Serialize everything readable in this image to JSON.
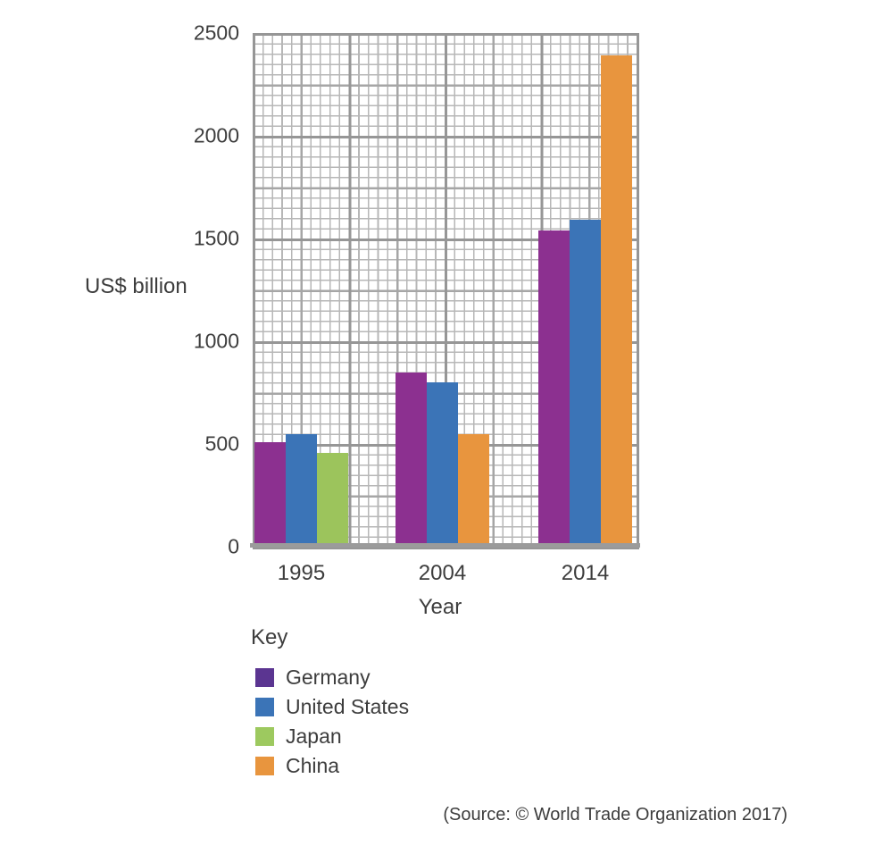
{
  "figure": {
    "labels": {
      "y_axis": "US$ billion",
      "x_axis": "Year",
      "key_title": "Key",
      "source": "(Source: © World Trade Organization 2017)"
    },
    "colors": {
      "text": "#3d3d3d",
      "axis_line": "#9b9b9b",
      "grid_minor": "#b7b7b7",
      "grid_medium": "#a6a6a6",
      "grid_major": "#969696",
      "background": "#ffffff"
    }
  },
  "chart_data": {
    "type": "bar",
    "title": "",
    "xlabel": "Year",
    "ylabel": "US$ billion",
    "categories": [
      "1995",
      "2004",
      "2014"
    ],
    "series": [
      {
        "name": "Germany",
        "values": [
          510,
          850,
          1540
        ],
        "bar_color": "#8c3090",
        "legend_color": "#5b3591"
      },
      {
        "name": "United States",
        "values": [
          550,
          800,
          1590
        ],
        "bar_color": "#3b74b7",
        "legend_color": "#3b74b7"
      },
      {
        "name": "Japan",
        "values": [
          455,
          null,
          null
        ],
        "bar_color": "#9cc45c",
        "legend_color": "#9dc95f"
      },
      {
        "name": "China",
        "values": [
          null,
          550,
          2390
        ],
        "bar_color": "#e8953e",
        "legend_color": "#e8953e"
      }
    ],
    "ylim": [
      0,
      2500
    ],
    "yticks": [
      2500,
      2000,
      1500,
      1000,
      500,
      0
    ],
    "grid": "graph-paper: minor step 50, medium step 250, major step 500",
    "legend_position": "below-left",
    "legend_title": "Key",
    "source": "(Source: © World Trade Organization 2017)"
  }
}
